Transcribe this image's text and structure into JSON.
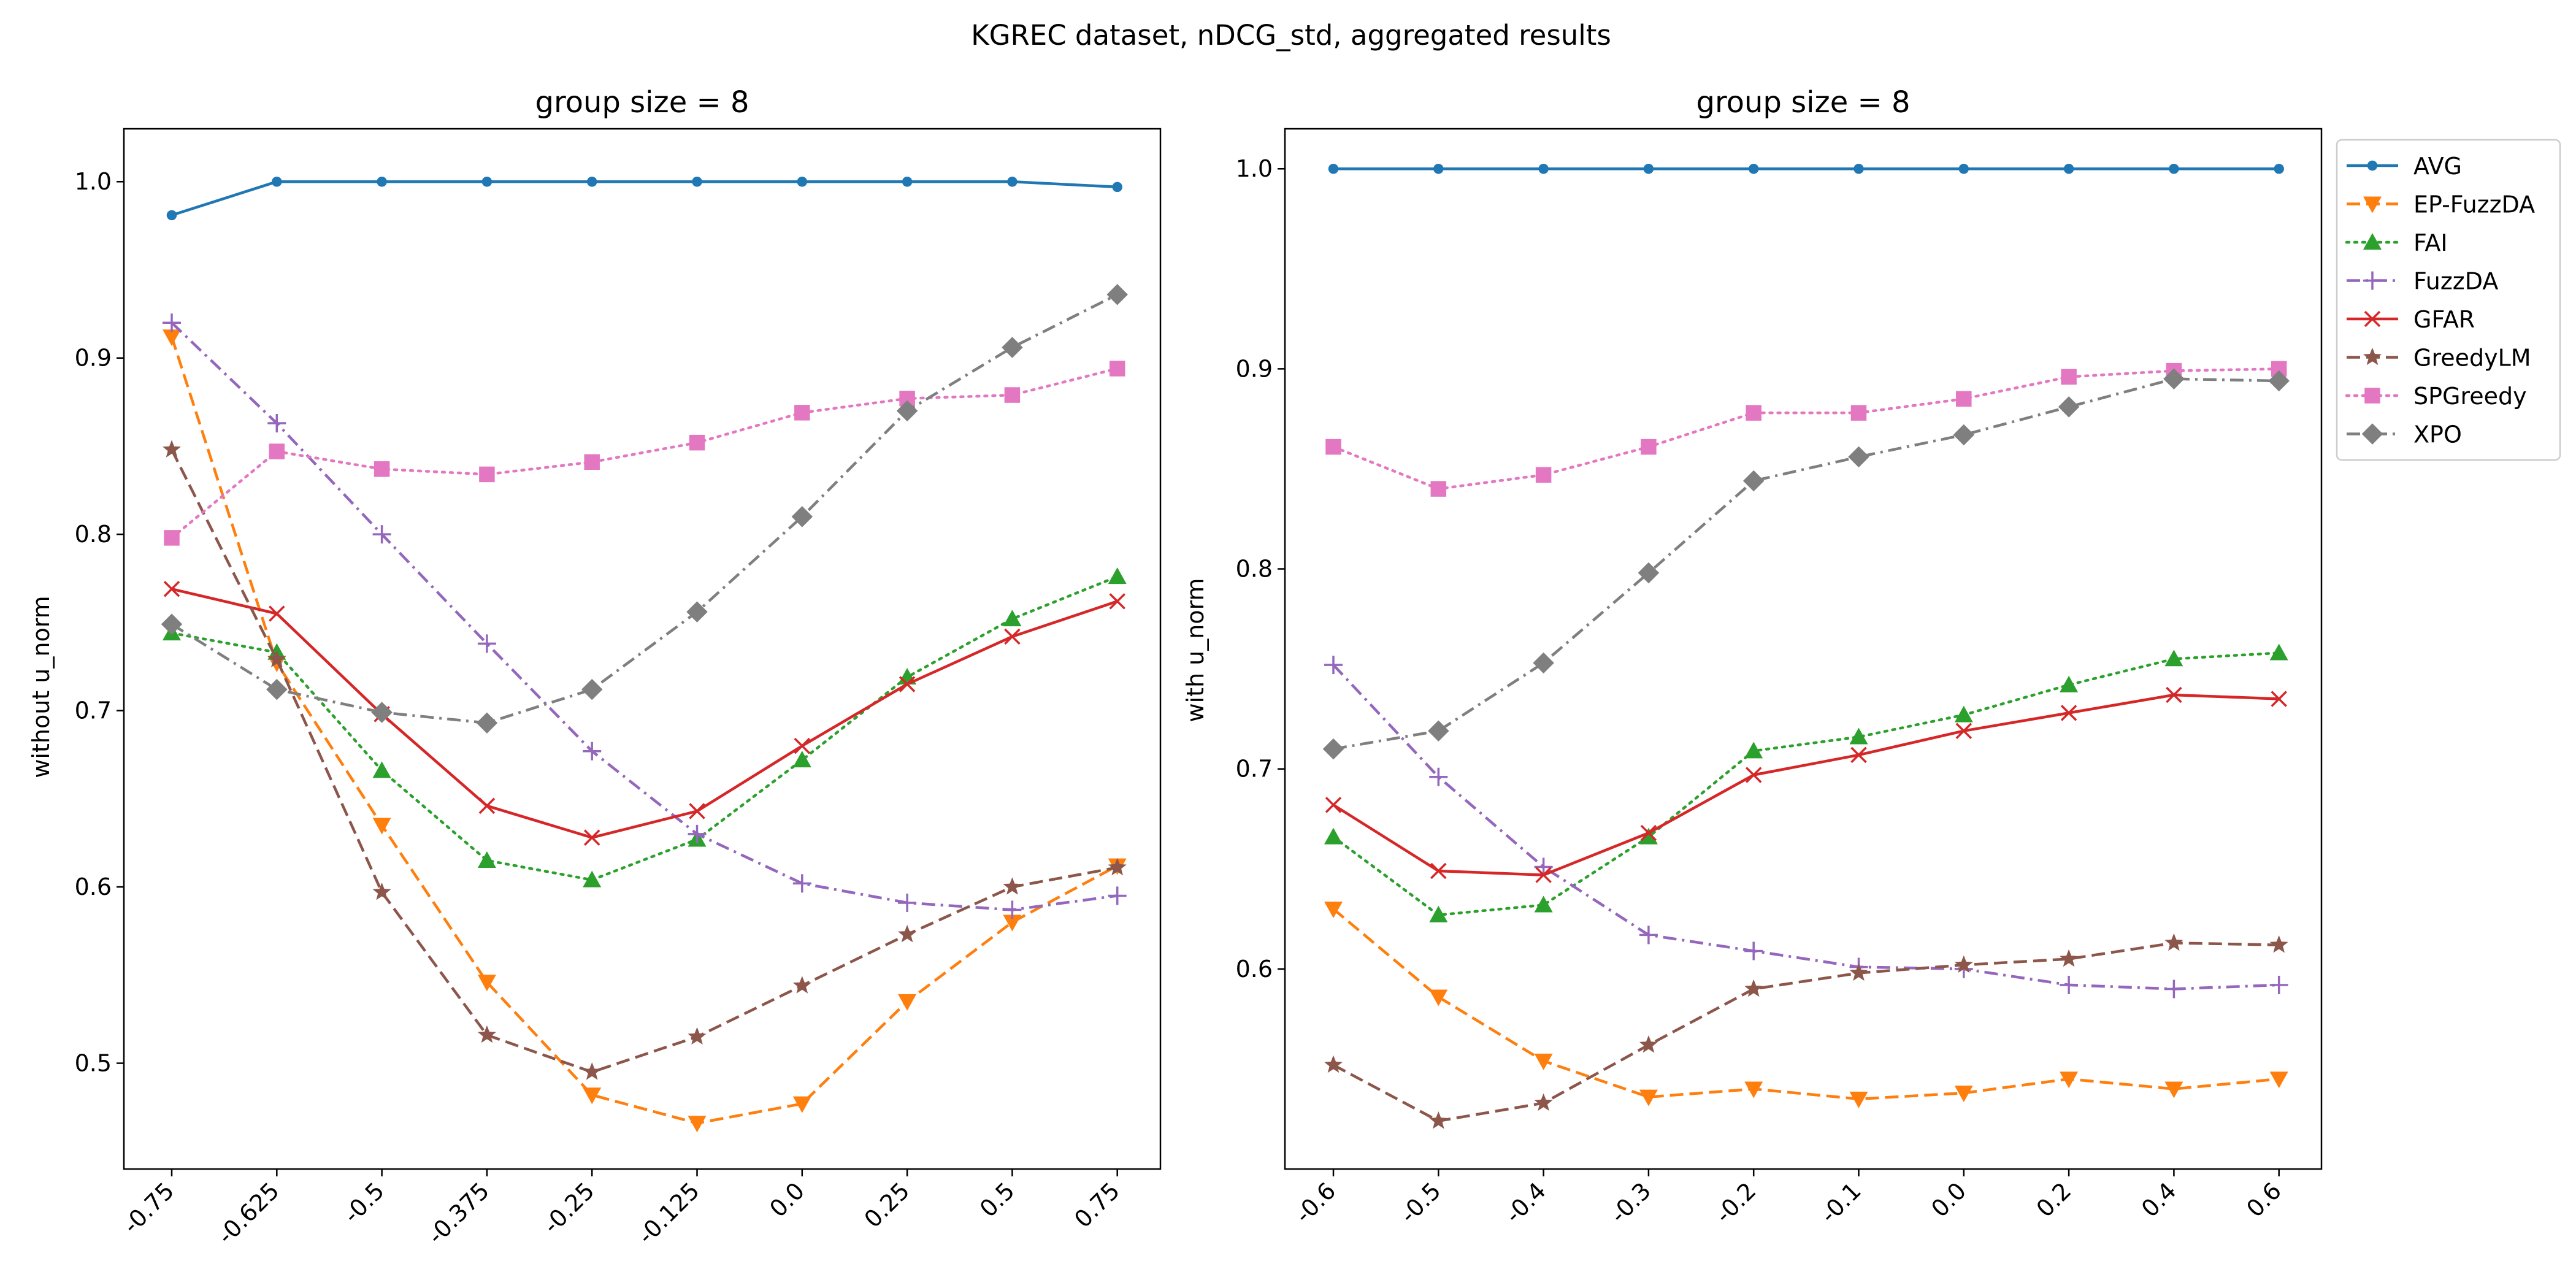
{
  "figure_title": "KGREC dataset, nDCG_std, aggregated results",
  "colors": {
    "AVG": "#1f77b4",
    "EP-FuzzDA": "#ff7f0e",
    "FAI": "#2ca02c",
    "FuzzDA": "#9467bd",
    "GFAR": "#d62728",
    "GreedyLM": "#8c564b",
    "SPGreedy": "#e377c2",
    "XPO": "#7f7f7f"
  },
  "legend_items": [
    "AVG",
    "EP-FuzzDA",
    "FAI",
    "FuzzDA",
    "GFAR",
    "GreedyLM",
    "SPGreedy",
    "XPO"
  ],
  "legend_placement": "outside right, top",
  "chart_data": [
    {
      "type": "line",
      "title": "group size = 8",
      "xlabel": "",
      "ylabel": "without u_norm",
      "categories": [
        "-0.75",
        "-0.625",
        "-0.5",
        "-0.375",
        "-0.25",
        "-0.125",
        "0.0",
        "0.25",
        "0.5",
        "0.75"
      ],
      "ylim": [
        0.44,
        1.03
      ],
      "yticks": [
        0.5,
        0.6,
        0.7,
        0.8,
        0.9,
        1.0
      ],
      "grid": false,
      "series": [
        {
          "name": "AVG",
          "style": "solid",
          "marker": "dot",
          "values": [
            0.981,
            1.0,
            1.0,
            1.0,
            1.0,
            1.0,
            1.0,
            1.0,
            1.0,
            0.997
          ]
        },
        {
          "name": "EP-FuzzDA",
          "style": "dashed",
          "marker": "triangle-down",
          "values": [
            0.912,
            0.727,
            0.635,
            0.546,
            0.482,
            0.466,
            0.477,
            0.535,
            0.58,
            0.612
          ]
        },
        {
          "name": "FAI",
          "style": "dotted",
          "marker": "triangle-up",
          "values": [
            0.744,
            0.733,
            0.666,
            0.615,
            0.604,
            0.627,
            0.672,
            0.719,
            0.752,
            0.776
          ]
        },
        {
          "name": "FuzzDA",
          "style": "dashdot",
          "marker": "plus",
          "values": [
            0.92,
            0.863,
            0.8,
            0.738,
            0.677,
            0.63,
            0.602,
            0.591,
            0.587,
            0.595
          ]
        },
        {
          "name": "GFAR",
          "style": "solid",
          "marker": "x",
          "values": [
            0.769,
            0.755,
            0.698,
            0.646,
            0.628,
            0.643,
            0.68,
            0.715,
            0.742,
            0.762
          ]
        },
        {
          "name": "GreedyLM",
          "style": "dashed",
          "marker": "star",
          "values": [
            0.848,
            0.729,
            0.597,
            0.516,
            0.495,
            0.515,
            0.544,
            0.573,
            0.6,
            0.611
          ]
        },
        {
          "name": "SPGreedy",
          "style": "dotted",
          "marker": "square",
          "values": [
            0.798,
            0.847,
            0.837,
            0.834,
            0.841,
            0.852,
            0.869,
            0.877,
            0.879,
            0.894
          ]
        },
        {
          "name": "XPO",
          "style": "dashdot",
          "marker": "diamond",
          "values": [
            0.749,
            0.712,
            0.699,
            0.693,
            0.712,
            0.756,
            0.81,
            0.87,
            0.906,
            0.936
          ]
        }
      ]
    },
    {
      "type": "line",
      "title": "group size = 8",
      "xlabel": "",
      "ylabel": "with u_norm",
      "categories": [
        "-0.6",
        "-0.5",
        "-0.4",
        "-0.3",
        "-0.2",
        "-0.1",
        "0.0",
        "0.2",
        "0.4",
        "0.6"
      ],
      "ylim": [
        0.5,
        1.02
      ],
      "yticks": [
        0.6,
        0.7,
        0.8,
        0.9,
        1.0
      ],
      "grid": false,
      "series": [
        {
          "name": "AVG",
          "style": "solid",
          "marker": "dot",
          "values": [
            1.0,
            1.0,
            1.0,
            1.0,
            1.0,
            1.0,
            1.0,
            1.0,
            1.0,
            1.0
          ]
        },
        {
          "name": "EP-FuzzDA",
          "style": "dashed",
          "marker": "triangle-down",
          "values": [
            0.63,
            0.586,
            0.554,
            0.536,
            0.54,
            0.535,
            0.538,
            0.545,
            0.54,
            0.545
          ]
        },
        {
          "name": "FAI",
          "style": "dotted",
          "marker": "triangle-up",
          "values": [
            0.666,
            0.627,
            0.632,
            0.666,
            0.709,
            0.716,
            0.727,
            0.742,
            0.755,
            0.758
          ]
        },
        {
          "name": "FuzzDA",
          "style": "dashdot",
          "marker": "plus",
          "values": [
            0.752,
            0.696,
            0.651,
            0.617,
            0.609,
            0.601,
            0.6,
            0.592,
            0.59,
            0.592
          ]
        },
        {
          "name": "GFAR",
          "style": "solid",
          "marker": "x",
          "values": [
            0.682,
            0.649,
            0.647,
            0.668,
            0.697,
            0.707,
            0.719,
            0.728,
            0.737,
            0.735
          ]
        },
        {
          "name": "GreedyLM",
          "style": "dashed",
          "marker": "star",
          "values": [
            0.552,
            0.524,
            0.533,
            0.562,
            0.59,
            0.598,
            0.602,
            0.605,
            0.613,
            0.612
          ]
        },
        {
          "name": "SPGreedy",
          "style": "dotted",
          "marker": "square",
          "values": [
            0.861,
            0.84,
            0.847,
            0.861,
            0.878,
            0.878,
            0.885,
            0.896,
            0.899,
            0.9
          ]
        },
        {
          "name": "XPO",
          "style": "dashdot",
          "marker": "diamond",
          "values": [
            0.71,
            0.719,
            0.753,
            0.798,
            0.844,
            0.856,
            0.867,
            0.881,
            0.895,
            0.894
          ]
        }
      ]
    }
  ]
}
